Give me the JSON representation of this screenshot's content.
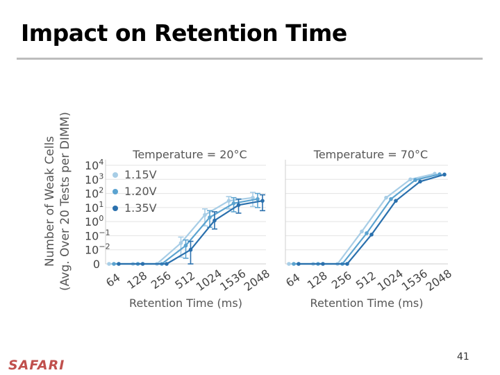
{
  "slide": {
    "title": "Impact on Retention Time",
    "logo": "SAFARI",
    "page_number": "41"
  },
  "colors": {
    "v115": "#a7cde6",
    "v120": "#5ba3d0",
    "v135": "#2a70ad",
    "grid": "#e3e3e3",
    "logo": "#c0504d"
  },
  "chart_data": [
    {
      "type": "line",
      "title": "Temperature = 20°C",
      "xlabel": "Retention Time (ms)",
      "ylabel": "Number of Weak Cells",
      "ylabel2": "(Avg. Over 20 Tests per DIMM)",
      "x_categories": [
        "64",
        "128",
        "256",
        "512",
        "1024",
        "1536",
        "2048"
      ],
      "y_scale": "log (symlog with 0)",
      "y_ticks": [
        {
          "exp": "4",
          "value": 10000
        },
        {
          "exp": "3",
          "value": 1000
        },
        {
          "exp": "2",
          "value": 100
        },
        {
          "exp": "1",
          "value": 10
        },
        {
          "exp": "0",
          "value": 1
        },
        {
          "exp": "−1",
          "value": 0.1
        },
        {
          "exp": "−2",
          "value": 0.01
        },
        {
          "exp": "",
          "value": 0,
          "label": "0"
        }
      ],
      "legend": [
        "1.15V",
        "1.20V",
        "1.35V"
      ],
      "legend_position": "top-left",
      "series": [
        {
          "name": "1.15V",
          "values": [
            0,
            0,
            0,
            0.03,
            3,
            30,
            50
          ],
          "err_hi": [
            0,
            0,
            0,
            0.08,
            8,
            60,
            120
          ],
          "err_lo": [
            0,
            0,
            0,
            0.003,
            0.5,
            8,
            12
          ]
        },
        {
          "name": "1.20V",
          "values": [
            0,
            0,
            0,
            0.02,
            2,
            20,
            40
          ],
          "err_hi": [
            0,
            0,
            0,
            0.05,
            6,
            50,
            100
          ],
          "err_lo": [
            0,
            0,
            0,
            0.002,
            0.4,
            5,
            10
          ]
        },
        {
          "name": "1.35V",
          "values": [
            0,
            0,
            0,
            0.01,
            1.2,
            15,
            30
          ],
          "err_hi": [
            0,
            0,
            0,
            0.04,
            5,
            40,
            80
          ],
          "err_lo": [
            0,
            0,
            0,
            0,
            0.3,
            4,
            6
          ]
        }
      ]
    },
    {
      "type": "line",
      "title": "Temperature = 70°C",
      "xlabel": "Retention Time (ms)",
      "x_categories": [
        "64",
        "128",
        "256",
        "512",
        "1024",
        "1536",
        "2048"
      ],
      "y_scale": "log (symlog with 0)",
      "series": [
        {
          "name": "1.15V",
          "values": [
            0,
            0,
            0,
            0.2,
            50,
            1000,
            2500
          ]
        },
        {
          "name": "1.20V",
          "values": [
            0,
            0,
            0,
            0.15,
            40,
            900,
            2300
          ]
        },
        {
          "name": "1.35V",
          "values": [
            0,
            0,
            0,
            0.12,
            30,
            700,
            2200
          ]
        }
      ]
    }
  ]
}
